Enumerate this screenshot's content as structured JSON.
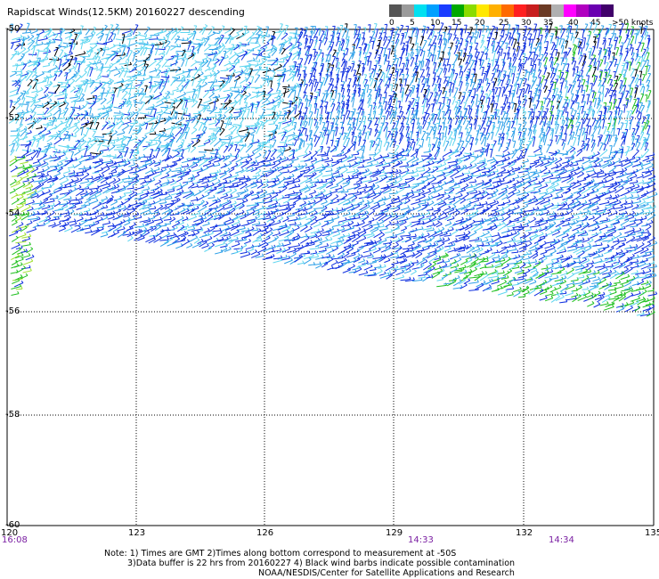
{
  "title": "Rapidscat Winds(12.5KM) 20160227 descending",
  "legend": {
    "labels": [
      "0",
      "5",
      "10",
      "15",
      "20",
      "25",
      "30",
      "35",
      "40",
      "45",
      ">50 knots"
    ],
    "colors": [
      "#555555",
      "#9a9a9a",
      "#00e0f0",
      "#00a0ff",
      "#1a3cff",
      "#00a800",
      "#8adc00",
      "#ffe800",
      "#ffb000",
      "#ff6a00",
      "#ff2020",
      "#c81e1e",
      "#6b3a24",
      "#b0b0b0",
      "#ff00ff",
      "#b000c0",
      "#6a00b0",
      "#40006a"
    ]
  },
  "map": {
    "lon_ticks": [
      "120",
      "123",
      "126",
      "129",
      "132",
      "135"
    ],
    "lat_ticks": [
      "-50",
      "-52",
      "-54",
      "-56",
      "-58",
      "-60"
    ],
    "time_labels": [
      "16:08",
      "14:33",
      "14:34"
    ]
  },
  "wind_colors": {
    "calm": "#000000",
    "light": "#5fd6f0",
    "medium": "#2ea0e8",
    "strong": "#1030e0",
    "green": "#20c020",
    "lime": "#a0e030",
    "orange": "#ff8c00"
  },
  "notes": [
    "Note: 1) Times are GMT 2)Times along bottom correspond to measurement at -50S",
    "3)Data buffer is 22 hrs from 20160227 4) Black wind barbs indicate possible contamination",
    "NOAA/NESDIS/Center for Satellite Applications and Research"
  ]
}
